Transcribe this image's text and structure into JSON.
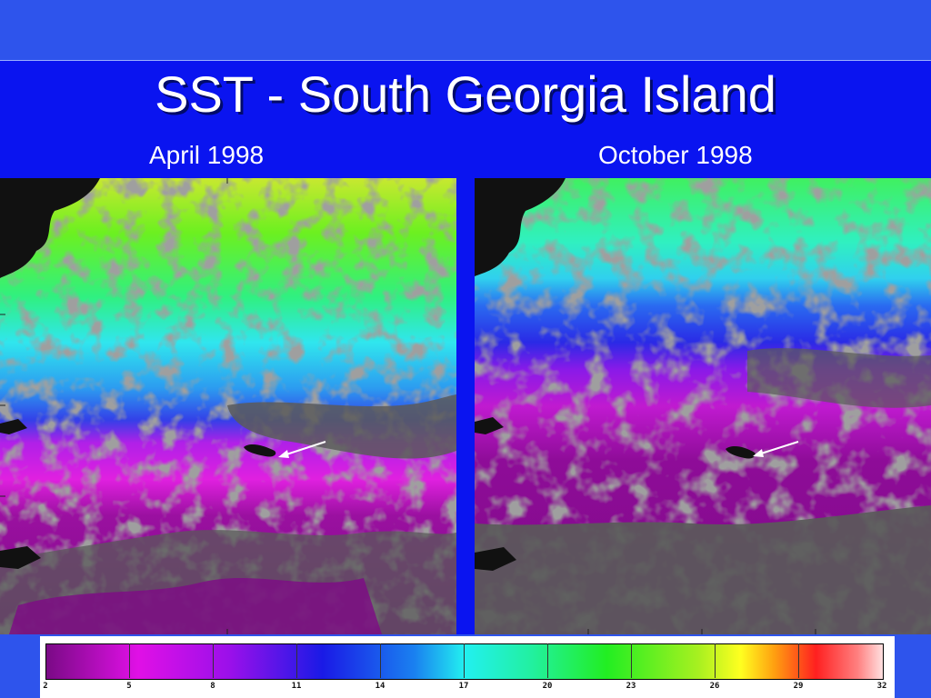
{
  "slide": {
    "title": "SST -  South Georgia Island",
    "left_caption": "April 1998",
    "right_caption": "October 1998"
  },
  "colors": {
    "background": "#0a14f0",
    "band": "#2e54ec",
    "land": "#111111",
    "cloud_mask": "#5a5a5a"
  },
  "colorbar": {
    "ticks": [
      "2",
      "5",
      "8",
      "11",
      "14",
      "17",
      "20",
      "23",
      "26",
      "29",
      "32"
    ]
  },
  "maps": [
    {
      "name": "april-1998-sst-map",
      "marker": "arrow-icon"
    },
    {
      "name": "october-1998-sst-map",
      "marker": "arrow-icon"
    }
  ]
}
